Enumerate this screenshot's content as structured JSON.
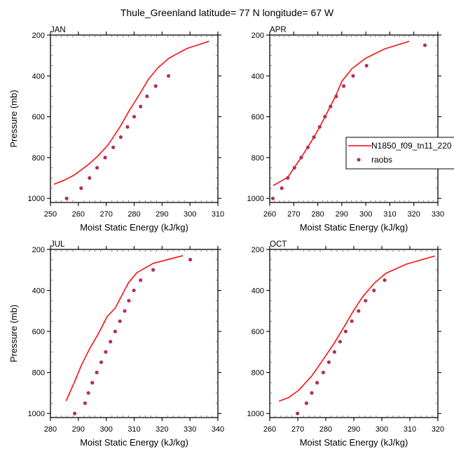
{
  "title": "Thule_Greenland  latitude= 77 N longitude= 67 W",
  "colors": {
    "model": "#ff0000",
    "obs": "#b03060",
    "axis": "#000000"
  },
  "legend": {
    "placement": "right-middle of APR panel (clipped at right edge)",
    "entries": [
      {
        "label": "N1850_f09_tn11_220",
        "type": "line"
      },
      {
        "label": "raobs",
        "type": "marker"
      }
    ]
  },
  "chart_data": [
    {
      "type": "line",
      "panel": "JAN",
      "title": "JAN",
      "xlabel": "Moist Static Energy (kJ/kg)",
      "ylabel": "Pressure (mb)",
      "xlim": [
        250,
        310
      ],
      "ylim": [
        200,
        1020
      ],
      "y_reversed": true,
      "xticks": [
        250,
        260,
        270,
        280,
        290,
        300,
        310
      ],
      "yticks": [
        200,
        400,
        600,
        800,
        1000
      ],
      "show_ylabel": true,
      "series": [
        {
          "name": "N1850_f09_tn11_220",
          "kind": "line",
          "x": [
            251.2,
            254.8,
            258.5,
            263.6,
            266.9,
            270.7,
            275.1,
            278.2,
            282.1,
            285.1,
            288.4,
            292.4,
            298.9,
            306.8
          ],
          "y": [
            931,
            912,
            886,
            834,
            794,
            737,
            646,
            571,
            486,
            417,
            362,
            314,
            266,
            231
          ]
        },
        {
          "name": "raobs",
          "kind": "marker",
          "x": [
            255.8,
            261.0,
            264.0,
            266.7,
            269.6,
            272.5,
            275.2,
            277.6,
            280.0,
            282.3,
            284.6,
            287.7,
            292.3
          ],
          "y": [
            1000,
            950,
            900,
            850,
            800,
            750,
            700,
            650,
            600,
            550,
            500,
            450,
            400
          ]
        }
      ]
    },
    {
      "type": "line",
      "panel": "APR",
      "title": "APR",
      "xlabel": "Moist Static Energy (kJ/kg)",
      "ylabel": "",
      "xlim": [
        260,
        330
      ],
      "ylim": [
        200,
        1020
      ],
      "y_reversed": true,
      "xticks": [
        260,
        270,
        280,
        290,
        300,
        310,
        320,
        330
      ],
      "yticks": [
        200,
        400,
        600,
        800,
        1000
      ],
      "show_ylabel": false,
      "series": [
        {
          "name": "N1850_f09_tn11_220",
          "kind": "line",
          "x": [
            261.5,
            264.9,
            267.5,
            270.2,
            273.1,
            275.8,
            278.4,
            280.8,
            283.0,
            285.2,
            287.4,
            290.1,
            294.3,
            299.9,
            307.8,
            318.0
          ],
          "y": [
            937,
            914,
            897,
            849,
            800,
            749,
            700,
            650,
            600,
            550,
            500,
            425,
            364,
            314,
            268,
            231
          ]
        },
        {
          "name": "raobs",
          "kind": "marker",
          "x": [
            261.3,
            265.0,
            267.5,
            270.3,
            273.1,
            275.9,
            278.4,
            280.8,
            283.0,
            285.3,
            287.7,
            290.8,
            294.7,
            300.3,
            324.6
          ],
          "y": [
            1000,
            950,
            900,
            850,
            800,
            750,
            700,
            650,
            600,
            550,
            500,
            450,
            400,
            350,
            250
          ]
        }
      ]
    },
    {
      "type": "line",
      "panel": "JUL",
      "title": "JUL",
      "xlabel": "Moist Static Energy (kJ/kg)",
      "ylabel": "Pressure (mb)",
      "xlim": [
        280,
        340
      ],
      "ylim": [
        200,
        1020
      ],
      "y_reversed": true,
      "xticks": [
        280,
        290,
        300,
        310,
        320,
        330,
        340
      ],
      "yticks": [
        200,
        400,
        600,
        800,
        1000
      ],
      "show_ylabel": true,
      "series": [
        {
          "name": "N1850_f09_tn11_220",
          "kind": "line",
          "x": [
            285.6,
            288.5,
            291.0,
            293.9,
            297.3,
            300.3,
            303.2,
            308.0,
            311.0,
            316.8,
            327.5
          ],
          "y": [
            939,
            850,
            768,
            688,
            608,
            528,
            486,
            362,
            313,
            268,
            230
          ]
        },
        {
          "name": "raobs",
          "kind": "marker",
          "x": [
            288.7,
            292.4,
            293.6,
            295.0,
            296.6,
            298.2,
            299.8,
            301.5,
            303.2,
            304.9,
            306.6,
            308.1,
            309.9,
            312.3,
            316.8,
            330.1
          ],
          "y": [
            1000,
            950,
            900,
            850,
            800,
            750,
            700,
            650,
            600,
            550,
            500,
            450,
            400,
            350,
            300,
            250
          ]
        }
      ]
    },
    {
      "type": "line",
      "panel": "OCT",
      "title": "OCT",
      "xlabel": "Moist Static Energy (kJ/kg)",
      "ylabel": "",
      "xlim": [
        260,
        320
      ],
      "ylim": [
        200,
        1020
      ],
      "y_reversed": true,
      "xticks": [
        260,
        270,
        280,
        290,
        300,
        310,
        320
      ],
      "yticks": [
        200,
        400,
        600,
        800,
        1000
      ],
      "show_ylabel": false,
      "series": [
        {
          "name": "N1850_f09_tn11_220",
          "kind": "line",
          "x": [
            263.3,
            266.7,
            270.4,
            275.0,
            279.6,
            283.0,
            286.3,
            289.7,
            293.0,
            297.2,
            301.4,
            308.9,
            318.9
          ],
          "y": [
            940,
            923,
            886,
            817,
            726,
            657,
            583,
            503,
            434,
            366,
            317,
            271,
            232
          ]
        },
        {
          "name": "raobs",
          "kind": "marker",
          "x": [
            269.9,
            273.1,
            275.0,
            276.9,
            279.1,
            281.1,
            283.1,
            285.1,
            287.1,
            289.3,
            291.7,
            294.2,
            297.2,
            301.0
          ],
          "y": [
            1000,
            950,
            900,
            850,
            800,
            750,
            700,
            650,
            600,
            550,
            500,
            450,
            400,
            350
          ]
        }
      ]
    }
  ]
}
